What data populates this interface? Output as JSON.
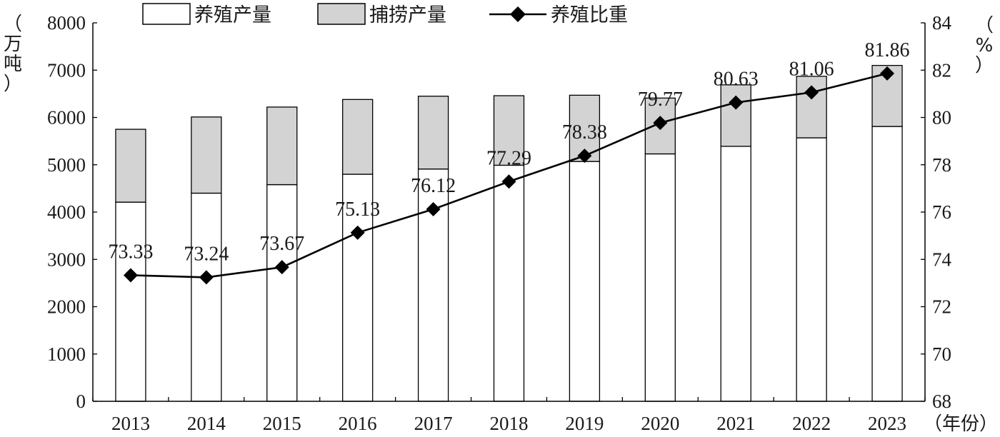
{
  "chart_data": {
    "type": "bar",
    "stacked": true,
    "categories": [
      "2013",
      "2014",
      "2015",
      "2016",
      "2017",
      "2018",
      "2019",
      "2020",
      "2021",
      "2022",
      "2023"
    ],
    "series": [
      {
        "name": "养殖产量",
        "axis": "left",
        "color": "#ffffff",
        "values": [
          4210,
          4400,
          4580,
          4800,
          4910,
          4990,
          5070,
          5230,
          5390,
          5570,
          5810
        ]
      },
      {
        "name": "捕捞产量",
        "axis": "left",
        "color": "#d3d3d3",
        "values": [
          1540,
          1610,
          1640,
          1580,
          1540,
          1470,
          1400,
          1180,
          1300,
          1300,
          1290
        ]
      },
      {
        "name": "养殖比重",
        "type": "line",
        "axis": "right",
        "color": "#000000",
        "marker": "diamond",
        "values": [
          73.33,
          73.24,
          73.67,
          75.13,
          76.12,
          77.29,
          78.38,
          79.77,
          80.63,
          81.06,
          81.86
        ]
      }
    ],
    "y_left": {
      "label_chars": [
        "（",
        "万",
        "吨",
        "）"
      ],
      "ylim": [
        0,
        8000
      ],
      "ticks": [
        "0",
        "1000",
        "2000",
        "3000",
        "4000",
        "5000",
        "6000",
        "7000",
        "8000"
      ]
    },
    "y_right": {
      "label_chars": [
        "（",
        "%",
        "）"
      ],
      "ylim": [
        68,
        84
      ],
      "ticks": [
        "68",
        "70",
        "72",
        "74",
        "76",
        "78",
        "80",
        "82",
        "84"
      ]
    },
    "x_unit": "（年份）",
    "legend": {
      "position": "top-center",
      "items": [
        "养殖产量",
        "捕捞产量",
        "养殖比重"
      ]
    },
    "grid": false
  }
}
